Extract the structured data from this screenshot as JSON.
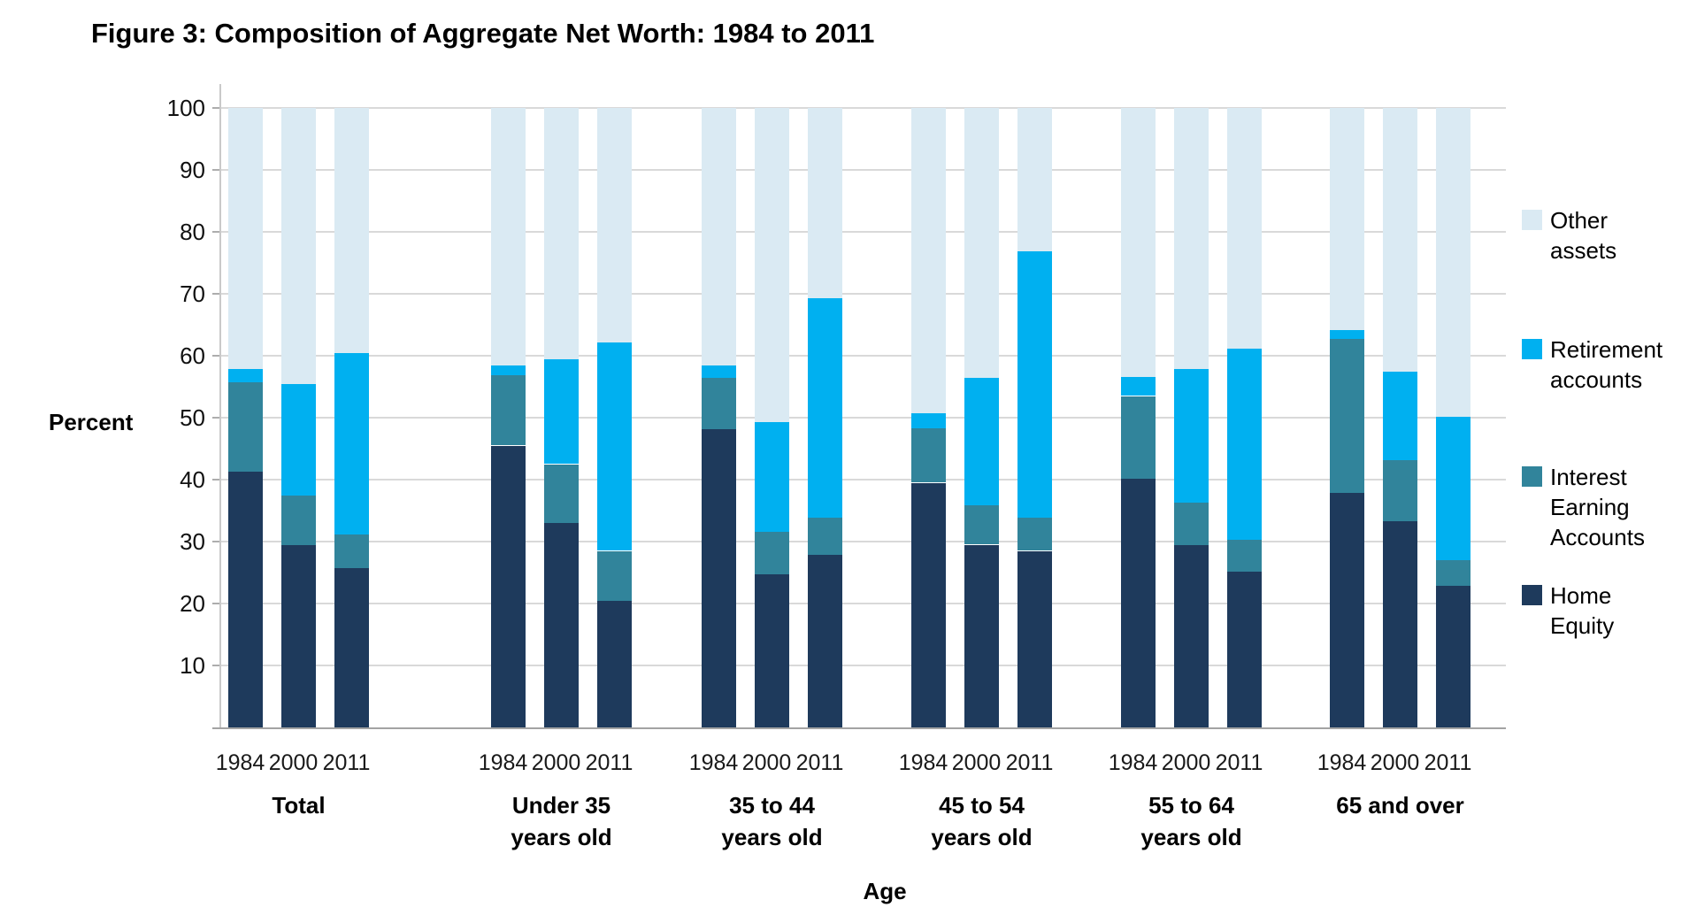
{
  "title": "Figure 3: Composition of Aggregate Net Worth: 1984 to 2011",
  "y_axis": {
    "label": "Percent",
    "ticks": [
      100,
      90,
      80,
      70,
      60,
      50,
      40,
      30,
      20,
      10
    ],
    "min": 0,
    "max": 100
  },
  "x_axis": {
    "label": "Age"
  },
  "legend": [
    {
      "lines": "Other\nassets",
      "color": "#DAEAF3"
    },
    {
      "lines": "Retirement\naccounts",
      "color": "#00B0F0"
    },
    {
      "lines": "Interest\nEarning\nAccounts",
      "color": "#31849B"
    },
    {
      "lines": "Home\nEquity",
      "color": "#1E3A5C"
    }
  ],
  "colors": {
    "gridline": "#D9D9D9",
    "axis_line": "#C9C9C9",
    "baseline": "#A3A3A3",
    "tick": "#ADADAD"
  },
  "chart_data": {
    "type": "bar",
    "stacked": true,
    "ylim": [
      0,
      100
    ],
    "grid": true,
    "legend_position": "right",
    "series": [
      {
        "key": "home_equity",
        "name": "Home Equity",
        "color": "#1E3A5C"
      },
      {
        "key": "interest_earning",
        "name": "Interest Earning Accounts",
        "color": "#31849B"
      },
      {
        "key": "retirement",
        "name": "Retirement accounts",
        "color": "#00B0F0"
      },
      {
        "key": "other_assets",
        "name": "Other assets",
        "color": "#DAEAF3"
      }
    ],
    "groups": [
      {
        "label_lines": "Total",
        "bars": [
          {
            "year": "1984",
            "home_equity": 41.3,
            "interest_earning": 14.4,
            "retirement": 2.2,
            "other_assets": 42.1
          },
          {
            "year": "2000",
            "home_equity": 29.4,
            "interest_earning": 8.0,
            "retirement": 18.0,
            "other_assets": 44.6
          },
          {
            "year": "2011",
            "home_equity": 25.7,
            "interest_earning": 5.4,
            "retirement": 29.3,
            "other_assets": 39.6
          }
        ]
      },
      {
        "label_lines": "Under 35\nyears old",
        "bars": [
          {
            "year": "1984",
            "home_equity": 45.5,
            "interest_earning": 11.3,
            "retirement": 1.7,
            "other_assets": 41.5
          },
          {
            "year": "2000",
            "home_equity": 33.0,
            "interest_earning": 9.5,
            "retirement": 16.9,
            "other_assets": 40.6
          },
          {
            "year": "2011",
            "home_equity": 20.5,
            "interest_earning": 8.0,
            "retirement": 33.6,
            "other_assets": 37.9
          }
        ]
      },
      {
        "label_lines": "35 to 44\nyears old",
        "bars": [
          {
            "year": "1984",
            "home_equity": 48.2,
            "interest_earning": 8.3,
            "retirement": 2.0,
            "other_assets": 41.5
          },
          {
            "year": "2000",
            "home_equity": 24.7,
            "interest_earning": 6.9,
            "retirement": 17.7,
            "other_assets": 50.7
          },
          {
            "year": "2011",
            "home_equity": 27.9,
            "interest_earning": 5.9,
            "retirement": 35.5,
            "other_assets": 30.7
          }
        ]
      },
      {
        "label_lines": "45 to 54\nyears old",
        "bars": [
          {
            "year": "1984",
            "home_equity": 39.5,
            "interest_earning": 8.8,
            "retirement": 2.4,
            "other_assets": 49.3
          },
          {
            "year": "2000",
            "home_equity": 29.5,
            "interest_earning": 6.3,
            "retirement": 20.6,
            "other_assets": 43.6
          },
          {
            "year": "2011",
            "home_equity": 28.5,
            "interest_earning": 5.4,
            "retirement": 42.9,
            "other_assets": 23.2
          }
        ]
      },
      {
        "label_lines": "55 to 64\nyears old",
        "bars": [
          {
            "year": "1984",
            "home_equity": 40.1,
            "interest_earning": 13.4,
            "retirement": 3.1,
            "other_assets": 43.4
          },
          {
            "year": "2000",
            "home_equity": 29.4,
            "interest_earning": 6.9,
            "retirement": 21.5,
            "other_assets": 42.2
          },
          {
            "year": "2011",
            "home_equity": 25.1,
            "interest_earning": 5.2,
            "retirement": 30.8,
            "other_assets": 38.9
          }
        ]
      },
      {
        "label_lines": "65 and over",
        "bars": [
          {
            "year": "1984",
            "home_equity": 37.8,
            "interest_earning": 24.9,
            "retirement": 1.4,
            "other_assets": 35.9
          },
          {
            "year": "2000",
            "home_equity": 33.3,
            "interest_earning": 9.8,
            "retirement": 14.4,
            "other_assets": 42.5
          },
          {
            "year": "2011",
            "home_equity": 22.8,
            "interest_earning": 4.2,
            "retirement": 23.1,
            "other_assets": 49.9
          }
        ]
      }
    ]
  }
}
